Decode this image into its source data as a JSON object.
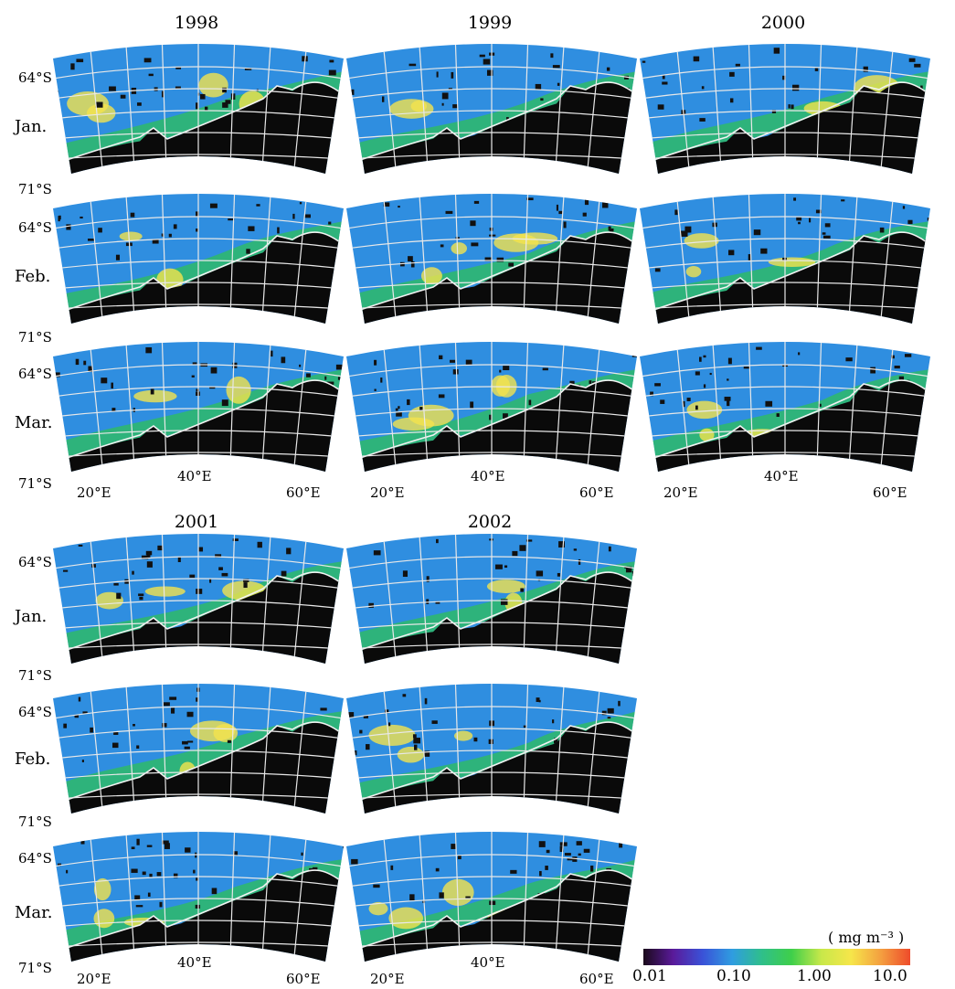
{
  "colors": {
    "land": "#0a0a0a",
    "ocean_low": "#2f8ee0",
    "ocean_mid": "#3aa7d6",
    "green": "#2fbf5a",
    "yellow": "#f4e44e",
    "red": "#d9302a",
    "grid": "#e8e8e8",
    "coast": "#f2f2f2"
  },
  "latitude_labels": {
    "north": "64°S",
    "south": "71°S"
  },
  "longitude_labels": [
    "20°E",
    "40°E",
    "60°E"
  ],
  "months": [
    "Jan.",
    "Feb.",
    "Mar."
  ],
  "groups": [
    {
      "years": [
        "1998",
        "1999",
        "2000"
      ]
    },
    {
      "years": [
        "2001",
        "2002"
      ]
    }
  ],
  "colorbar": {
    "unit": "( mg m⁻³ )",
    "ticks": [
      "0.01",
      "0.10",
      "1.00",
      "10.0"
    ],
    "stops": [
      "#1a0a1a",
      "#5a1a9a",
      "#3a52d8",
      "#2f9de0",
      "#2fbf8a",
      "#3fcf4a",
      "#c8e84a",
      "#f6e64a",
      "#f4a040",
      "#ee4b2b"
    ]
  }
}
